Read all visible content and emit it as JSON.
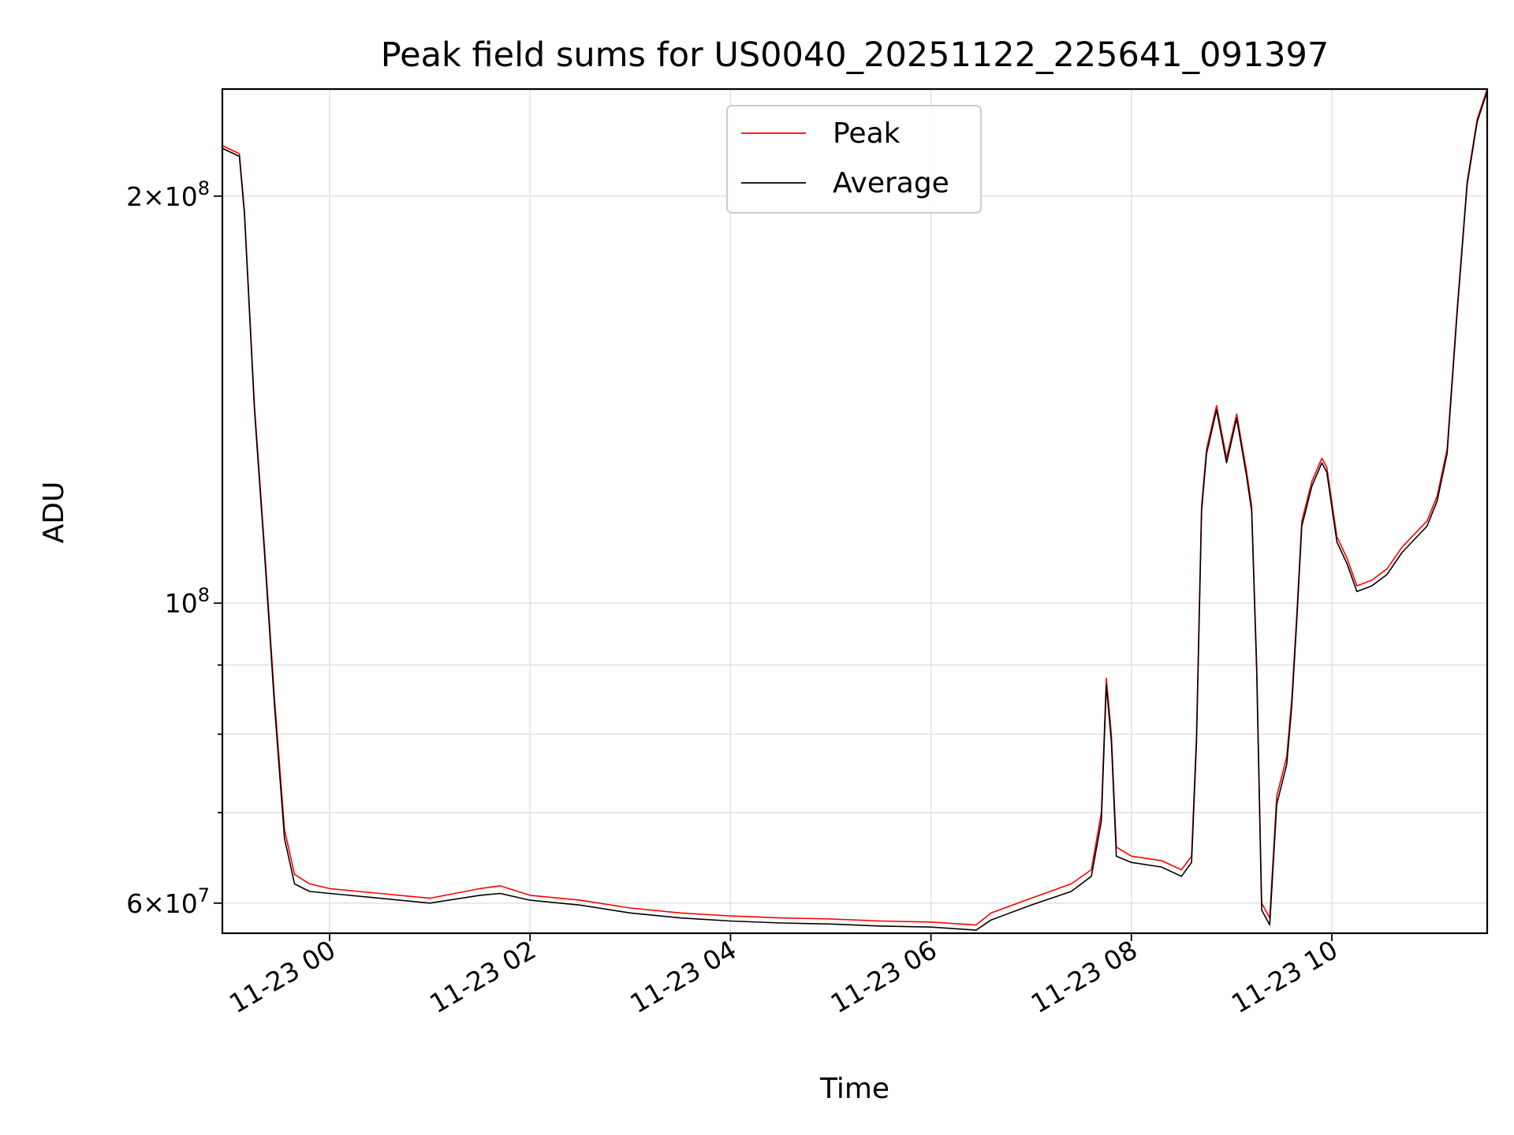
{
  "chart_data": {
    "type": "line",
    "title": "Peak field sums for US0040_20251122_225641_091397",
    "xlabel": "Time",
    "ylabel": "ADU",
    "yscale": "log",
    "ylim": [
      57000000,
      240000000
    ],
    "xlim_hours": [
      -1.07,
      11.55
    ],
    "grid": true,
    "legend_position": "upper center",
    "x_ticks": [
      {
        "hours": 0,
        "label": "11-23 00"
      },
      {
        "hours": 2,
        "label": "11-23 02"
      },
      {
        "hours": 4,
        "label": "11-23 04"
      },
      {
        "hours": 6,
        "label": "11-23 06"
      },
      {
        "hours": 8,
        "label": "11-23 08"
      },
      {
        "hours": 10,
        "label": "11-23 10"
      }
    ],
    "y_major_ticks": [
      {
        "value": 60000000,
        "label_mantissa": "6",
        "label_times": "×",
        "label_base": "10",
        "label_exp": "7"
      },
      {
        "value": 100000000,
        "label_mantissa": "",
        "label_times": "",
        "label_base": "10",
        "label_exp": "8"
      },
      {
        "value": 200000000,
        "label_mantissa": "2",
        "label_times": "×",
        "label_base": "10",
        "label_exp": "8"
      }
    ],
    "y_minor_ticks": [
      70000000,
      80000000,
      90000000
    ],
    "series": [
      {
        "name": "Peak",
        "color": "#ff0000",
        "points": [
          [
            -1.07,
            218000000
          ],
          [
            -0.9,
            215000000
          ],
          [
            -0.85,
            195000000
          ],
          [
            -0.75,
            140000000
          ],
          [
            -0.65,
            110000000
          ],
          [
            -0.55,
            85000000
          ],
          [
            -0.45,
            68000000
          ],
          [
            -0.35,
            63000000
          ],
          [
            -0.2,
            62000000
          ],
          [
            0.0,
            61500000
          ],
          [
            0.5,
            61000000
          ],
          [
            1.0,
            60500000
          ],
          [
            1.5,
            61500000
          ],
          [
            1.7,
            61800000
          ],
          [
            2.0,
            60800000
          ],
          [
            2.5,
            60300000
          ],
          [
            3.0,
            59500000
          ],
          [
            3.5,
            59000000
          ],
          [
            4.0,
            58700000
          ],
          [
            4.5,
            58500000
          ],
          [
            5.0,
            58400000
          ],
          [
            5.5,
            58200000
          ],
          [
            6.0,
            58100000
          ],
          [
            6.45,
            57800000
          ],
          [
            6.6,
            59000000
          ],
          [
            7.0,
            60500000
          ],
          [
            7.4,
            62000000
          ],
          [
            7.6,
            63500000
          ],
          [
            7.7,
            70000000
          ],
          [
            7.75,
            88000000
          ],
          [
            7.8,
            80000000
          ],
          [
            7.85,
            66000000
          ],
          [
            8.0,
            65000000
          ],
          [
            8.3,
            64500000
          ],
          [
            8.5,
            63500000
          ],
          [
            8.6,
            65000000
          ],
          [
            8.65,
            80000000
          ],
          [
            8.7,
            118000000
          ],
          [
            8.75,
            130000000
          ],
          [
            8.85,
            140000000
          ],
          [
            8.95,
            128000000
          ],
          [
            9.05,
            138000000
          ],
          [
            9.15,
            125000000
          ],
          [
            9.2,
            118000000
          ],
          [
            9.25,
            90000000
          ],
          [
            9.3,
            60000000
          ],
          [
            9.38,
            58500000
          ],
          [
            9.45,
            72000000
          ],
          [
            9.55,
            77000000
          ],
          [
            9.6,
            85000000
          ],
          [
            9.65,
            98000000
          ],
          [
            9.7,
            115000000
          ],
          [
            9.8,
            123000000
          ],
          [
            9.9,
            128000000
          ],
          [
            9.95,
            126000000
          ],
          [
            10.05,
            112000000
          ],
          [
            10.15,
            108000000
          ],
          [
            10.25,
            103000000
          ],
          [
            10.4,
            104000000
          ],
          [
            10.55,
            106000000
          ],
          [
            10.7,
            110000000
          ],
          [
            10.8,
            112000000
          ],
          [
            10.95,
            115000000
          ],
          [
            11.05,
            120000000
          ],
          [
            11.15,
            130000000
          ],
          [
            11.25,
            165000000
          ],
          [
            11.35,
            205000000
          ],
          [
            11.45,
            228000000
          ],
          [
            11.55,
            240000000
          ]
        ]
      },
      {
        "name": "Average",
        "color": "#000000",
        "points": [
          [
            -1.07,
            217000000
          ],
          [
            -0.9,
            214000000
          ],
          [
            -0.85,
            194000000
          ],
          [
            -0.75,
            139000000
          ],
          [
            -0.65,
            109000000
          ],
          [
            -0.55,
            84000000
          ],
          [
            -0.45,
            67000000
          ],
          [
            -0.35,
            62000000
          ],
          [
            -0.2,
            61200000
          ],
          [
            0.0,
            61000000
          ],
          [
            0.5,
            60500000
          ],
          [
            1.0,
            60000000
          ],
          [
            1.5,
            60800000
          ],
          [
            1.7,
            61000000
          ],
          [
            2.0,
            60300000
          ],
          [
            2.5,
            59800000
          ],
          [
            3.0,
            59000000
          ],
          [
            3.5,
            58500000
          ],
          [
            4.0,
            58200000
          ],
          [
            4.5,
            58000000
          ],
          [
            5.0,
            57900000
          ],
          [
            5.5,
            57700000
          ],
          [
            6.0,
            57600000
          ],
          [
            6.45,
            57300000
          ],
          [
            6.6,
            58300000
          ],
          [
            7.0,
            59800000
          ],
          [
            7.4,
            61200000
          ],
          [
            7.6,
            62800000
          ],
          [
            7.7,
            69000000
          ],
          [
            7.75,
            87000000
          ],
          [
            7.8,
            79000000
          ],
          [
            7.85,
            65000000
          ],
          [
            8.0,
            64300000
          ],
          [
            8.3,
            63800000
          ],
          [
            8.5,
            62800000
          ],
          [
            8.6,
            64300000
          ],
          [
            8.65,
            79000000
          ],
          [
            8.7,
            117000000
          ],
          [
            8.75,
            129000000
          ],
          [
            8.85,
            139000000
          ],
          [
            8.95,
            127000000
          ],
          [
            9.05,
            137000000
          ],
          [
            9.15,
            124000000
          ],
          [
            9.2,
            117000000
          ],
          [
            9.25,
            89000000
          ],
          [
            9.3,
            59300000
          ],
          [
            9.38,
            57800000
          ],
          [
            9.45,
            71000000
          ],
          [
            9.55,
            76000000
          ],
          [
            9.6,
            84000000
          ],
          [
            9.65,
            97000000
          ],
          [
            9.7,
            114000000
          ],
          [
            9.8,
            122000000
          ],
          [
            9.9,
            127000000
          ],
          [
            9.95,
            125000000
          ],
          [
            10.05,
            111000000
          ],
          [
            10.15,
            107000000
          ],
          [
            10.25,
            102000000
          ],
          [
            10.4,
            103000000
          ],
          [
            10.55,
            105000000
          ],
          [
            10.7,
            109000000
          ],
          [
            10.8,
            111000000
          ],
          [
            10.95,
            114000000
          ],
          [
            11.05,
            119000000
          ],
          [
            11.15,
            129000000
          ],
          [
            11.25,
            164000000
          ],
          [
            11.35,
            204000000
          ],
          [
            11.45,
            227000000
          ],
          [
            11.55,
            239000000
          ]
        ]
      }
    ]
  }
}
